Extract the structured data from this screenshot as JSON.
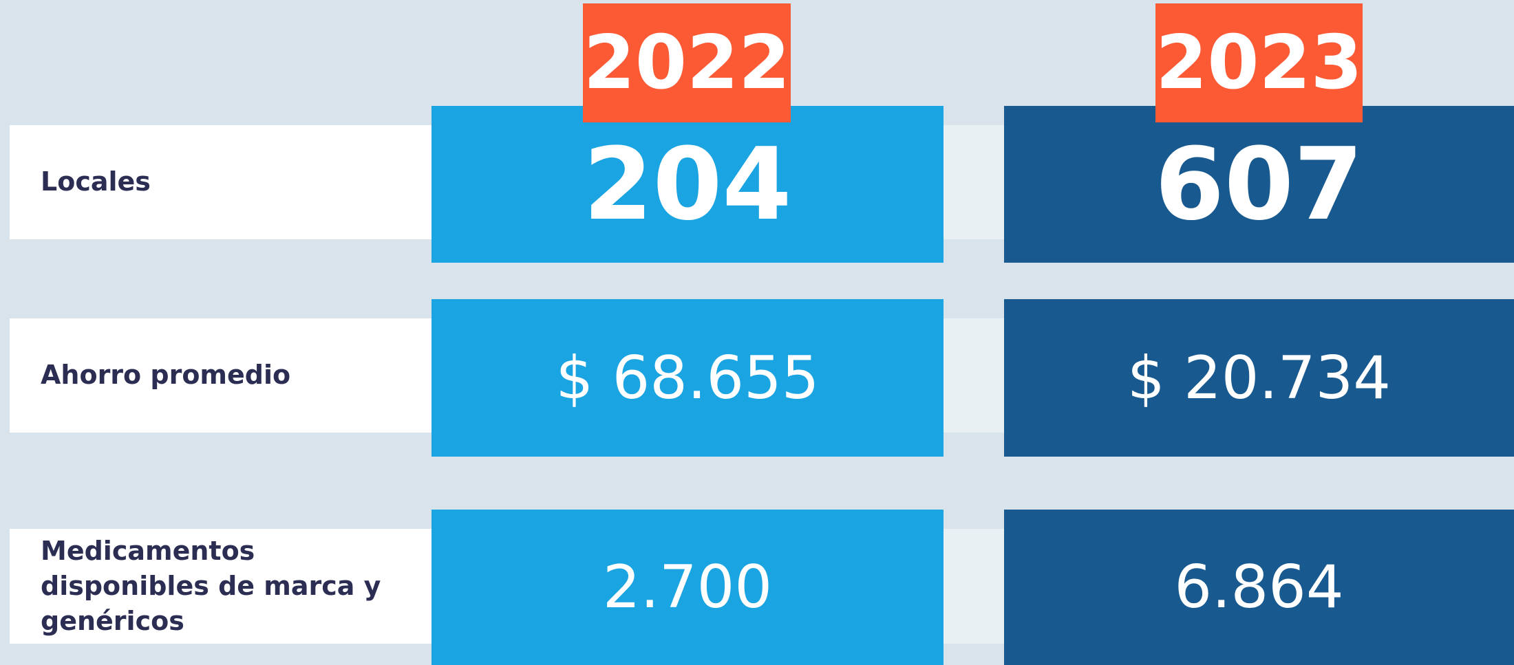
{
  "columns": [
    "2022",
    "2023"
  ],
  "rows": [
    {
      "label": "Locales",
      "values": [
        "204",
        "607"
      ]
    },
    {
      "label": "Ahorro promedio",
      "values": [
        "$ 68.655",
        "$ 20.734"
      ]
    },
    {
      "label": "Medicamentos disponibles de marca y genéricos",
      "values": [
        "2.700",
        "6.864"
      ]
    }
  ]
}
